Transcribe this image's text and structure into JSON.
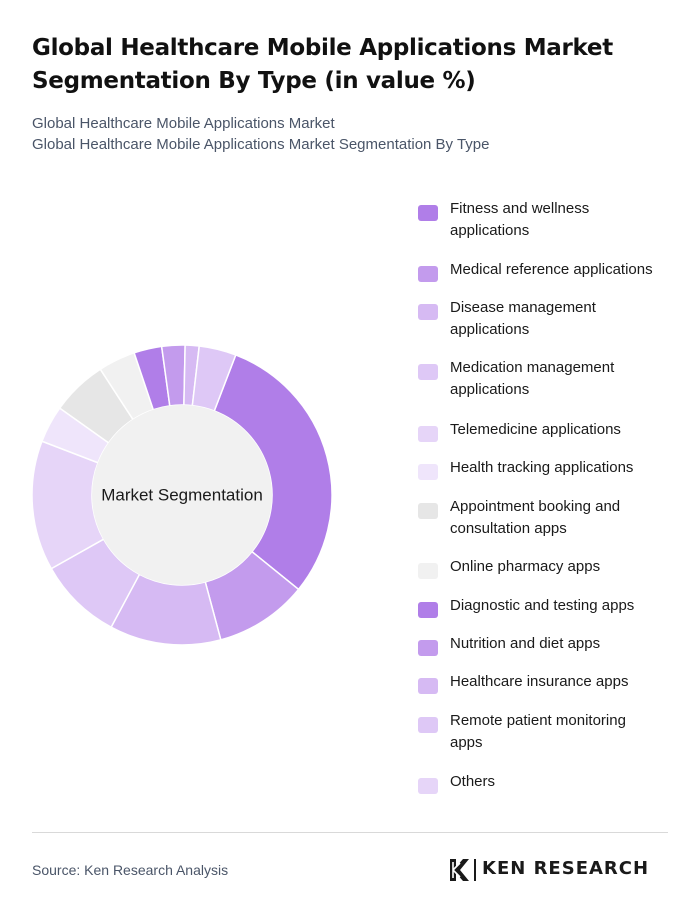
{
  "header": {
    "title": "Global Healthcare Mobile Applications Market Segmentation By Type (in value %)",
    "subtitle_line1": "Global Healthcare Mobile Applications Market",
    "subtitle_line2": "Global Healthcare Mobile Applications Market Segmentation By Type"
  },
  "chart_data": {
    "type": "pie",
    "variant": "donut",
    "center_label": "Market Segmentation",
    "legend_placement": "right",
    "start_angle_deg": 21,
    "unit": "%",
    "slices": [
      {
        "label": "Fitness and wellness applications",
        "value": 30,
        "color": "#b07ee8"
      },
      {
        "label": "Medical reference applications",
        "value": 10,
        "color": "#c39bed"
      },
      {
        "label": "Disease management applications",
        "value": 12,
        "color": "#d6baf3"
      },
      {
        "label": "Medication management applications",
        "value": 9,
        "color": "#dec8f6"
      },
      {
        "label": "Telemedicine applications",
        "value": 14,
        "color": "#e6d5f8"
      },
      {
        "label": "Health tracking applications",
        "value": 4,
        "color": "#efe5fb"
      },
      {
        "label": "Appointment booking and consultation apps",
        "value": 6,
        "color": "#e6e6e6"
      },
      {
        "label": "Online pharmacy apps",
        "value": 4,
        "color": "#f1f1f1"
      },
      {
        "label": "Diagnostic and testing apps",
        "value": 3,
        "color": "#b07ee8"
      },
      {
        "label": "Nutrition and diet apps",
        "value": 2.5,
        "color": "#c39bed"
      },
      {
        "label": "Healthcare insurance apps",
        "value": 1.5,
        "color": "#d6baf3"
      },
      {
        "label": "Remote patient monitoring apps",
        "value": 4,
        "color": "#dec8f6"
      },
      {
        "label": "Others",
        "value": 0,
        "color": "#e6d5f8"
      }
    ]
  },
  "legend_lines": [
    [
      "Fitness and wellness",
      "applications"
    ],
    [
      "Medical reference applications"
    ],
    [
      "Disease management",
      "applications"
    ],
    [
      "Medication management",
      "applications"
    ],
    [
      "Telemedicine applications"
    ],
    [
      "Health tracking applications"
    ],
    [
      "Appointment booking and",
      "consultation apps"
    ],
    [
      "Online pharmacy apps"
    ],
    [
      "Diagnostic and testing apps"
    ],
    [
      "Nutrition and diet apps"
    ],
    [
      "Healthcare insurance apps"
    ],
    [
      "Remote patient monitoring",
      "apps"
    ],
    [
      "Others"
    ]
  ],
  "footer": {
    "source": "Source: Ken Research Analysis",
    "logo_text": "KEN RESEARCH"
  }
}
